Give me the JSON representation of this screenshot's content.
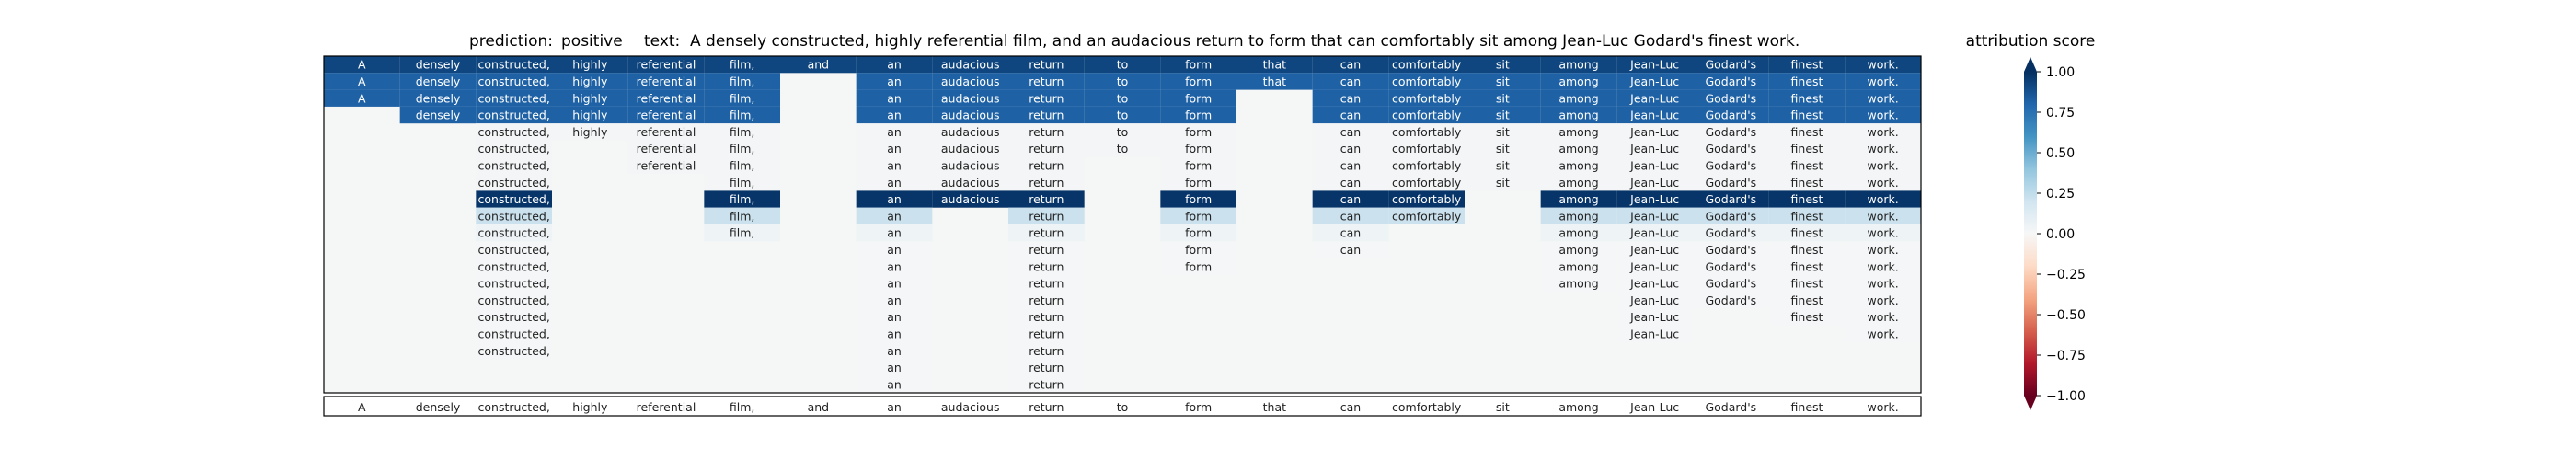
{
  "header": {
    "prediction_label": "prediction:",
    "prediction_value": "positive",
    "text_label": "text:",
    "text_value": "A densely constructed, highly referential film, and an audacious return to form that can comfortably sit among Jean-Luc Godard's finest work."
  },
  "colorbar": {
    "title": "attribution score",
    "ticks": [
      "1.00",
      "0.75",
      "0.50",
      "0.25",
      "0.00",
      "−0.25",
      "−0.50",
      "−0.75",
      "−1.00"
    ],
    "tick_values": [
      1.0,
      0.75,
      0.5,
      0.25,
      0.0,
      -0.25,
      -0.5,
      -0.75,
      -1.0
    ],
    "range": [
      -1.0,
      1.0
    ],
    "colormap": "RdBu"
  },
  "chart_data": {
    "type": "heatmap",
    "colormap": "RdBu",
    "range": [
      -1.0,
      1.0
    ],
    "tokens": [
      "A",
      "densely",
      "constructed,",
      "highly",
      "referential",
      "film,",
      "and",
      "an",
      "audacious",
      "return",
      "to",
      "form",
      "that",
      "can",
      "comfortably",
      "sit",
      "among",
      "Jean-Luc",
      "Godard's",
      "finest",
      "work."
    ],
    "bottom_row": [
      "A",
      "densely",
      "constructed,",
      "highly",
      "referential",
      "film,",
      "and",
      "an",
      "audacious",
      "return",
      "to",
      "form",
      "that",
      "can",
      "comfortably",
      "sit",
      "among",
      "Jean-Luc",
      "Godard's",
      "finest",
      "work."
    ],
    "rows": [
      {
        "shown": [
          1,
          1,
          1,
          1,
          1,
          1,
          1,
          1,
          1,
          1,
          1,
          1,
          1,
          1,
          1,
          1,
          1,
          1,
          1,
          1,
          1
        ],
        "scores": [
          0.92,
          0.92,
          0.92,
          0.92,
          0.92,
          0.92,
          0.92,
          0.92,
          0.92,
          0.92,
          0.92,
          0.92,
          0.92,
          0.92,
          0.92,
          0.92,
          0.92,
          0.92,
          0.92,
          0.92,
          0.92
        ]
      },
      {
        "shown": [
          1,
          1,
          1,
          1,
          1,
          1,
          0,
          1,
          1,
          1,
          1,
          1,
          1,
          1,
          1,
          1,
          1,
          1,
          1,
          1,
          1
        ],
        "scores": [
          0.82,
          0.82,
          0.82,
          0.82,
          0.82,
          0.82,
          0,
          0.82,
          0.82,
          0.82,
          0.82,
          0.82,
          0.82,
          0.82,
          0.82,
          0.82,
          0.82,
          0.82,
          0.82,
          0.82,
          0.82
        ]
      },
      {
        "shown": [
          1,
          1,
          1,
          1,
          1,
          1,
          0,
          1,
          1,
          1,
          1,
          1,
          0,
          1,
          1,
          1,
          1,
          1,
          1,
          1,
          1
        ],
        "scores": [
          0.82,
          0.82,
          0.82,
          0.82,
          0.82,
          0.82,
          0,
          0.82,
          0.82,
          0.82,
          0.82,
          0.82,
          0,
          0.82,
          0.82,
          0.82,
          0.82,
          0.82,
          0.82,
          0.82,
          0.82
        ]
      },
      {
        "shown": [
          0,
          1,
          1,
          1,
          1,
          1,
          0,
          1,
          1,
          1,
          1,
          1,
          0,
          1,
          1,
          1,
          1,
          1,
          1,
          1,
          1
        ],
        "scores": [
          0,
          0.82,
          0.82,
          0.82,
          0.82,
          0.82,
          0,
          0.82,
          0.82,
          0.82,
          0.82,
          0.82,
          0,
          0.82,
          0.82,
          0.82,
          0.82,
          0.82,
          0.82,
          0.82,
          0.82
        ]
      },
      {
        "shown": [
          0,
          0,
          1,
          1,
          1,
          1,
          0,
          1,
          1,
          1,
          1,
          1,
          0,
          1,
          1,
          1,
          1,
          1,
          1,
          1,
          1
        ],
        "scores": [
          0,
          0,
          0.02,
          0.02,
          0.02,
          0.02,
          0,
          0.02,
          0.02,
          0.02,
          0.02,
          0.02,
          0,
          0.02,
          0.02,
          0.02,
          0.02,
          0.02,
          0.02,
          0.02,
          0.02
        ]
      },
      {
        "shown": [
          0,
          0,
          1,
          0,
          1,
          1,
          0,
          1,
          1,
          1,
          1,
          1,
          0,
          1,
          1,
          1,
          1,
          1,
          1,
          1,
          1
        ],
        "scores": [
          0,
          0,
          0.02,
          0,
          0.02,
          0.02,
          0,
          0.02,
          0.02,
          0.02,
          0.02,
          0.02,
          0,
          0.02,
          0.02,
          0.02,
          0.02,
          0.02,
          0.02,
          0.02,
          0.02
        ]
      },
      {
        "shown": [
          0,
          0,
          1,
          0,
          1,
          1,
          0,
          1,
          1,
          1,
          0,
          1,
          0,
          1,
          1,
          1,
          1,
          1,
          1,
          1,
          1
        ],
        "scores": [
          0,
          0,
          0.02,
          0,
          0.02,
          0.02,
          0,
          0.02,
          0.02,
          0.02,
          0,
          0.02,
          0,
          0.02,
          0.02,
          0.02,
          0.02,
          0.02,
          0.02,
          0.02,
          0.02
        ]
      },
      {
        "shown": [
          0,
          0,
          1,
          0,
          0,
          1,
          0,
          1,
          1,
          1,
          0,
          1,
          0,
          1,
          1,
          1,
          1,
          1,
          1,
          1,
          1
        ],
        "scores": [
          0,
          0,
          0.02,
          0,
          0,
          0.02,
          0,
          0.02,
          0.02,
          0.02,
          0,
          0.02,
          0,
          0.02,
          0.02,
          0.02,
          0.02,
          0.02,
          0.02,
          0.02,
          0.02
        ]
      },
      {
        "shown": [
          0,
          0,
          1,
          0,
          0,
          1,
          0,
          1,
          1,
          1,
          0,
          1,
          0,
          1,
          1,
          0,
          1,
          1,
          1,
          1,
          1
        ],
        "scores": [
          0,
          0,
          0.98,
          0,
          0,
          0.98,
          0,
          0.98,
          0.98,
          0.98,
          0,
          0.98,
          0,
          0.98,
          0.98,
          0,
          0.98,
          0.98,
          0.98,
          0.98,
          0.98
        ]
      },
      {
        "shown": [
          0,
          0,
          1,
          0,
          0,
          1,
          0,
          1,
          0,
          1,
          0,
          1,
          0,
          1,
          1,
          0,
          1,
          1,
          1,
          1,
          1
        ],
        "scores": [
          0,
          0,
          0.22,
          0,
          0,
          0.22,
          0,
          0.22,
          0,
          0.22,
          0,
          0.22,
          0,
          0.22,
          0.22,
          0,
          0.22,
          0.22,
          0.22,
          0.22,
          0.22
        ]
      },
      {
        "shown": [
          0,
          0,
          1,
          0,
          0,
          1,
          0,
          1,
          0,
          1,
          0,
          1,
          0,
          1,
          0,
          0,
          1,
          1,
          1,
          1,
          1
        ],
        "scores": [
          0,
          0,
          0.05,
          0,
          0,
          0.05,
          0,
          0.05,
          0,
          0.05,
          0,
          0.05,
          0,
          0.05,
          0,
          0,
          0.05,
          0.05,
          0.05,
          0.05,
          0.05
        ]
      },
      {
        "shown": [
          0,
          0,
          1,
          0,
          0,
          0,
          0,
          1,
          0,
          1,
          0,
          1,
          0,
          1,
          0,
          0,
          1,
          1,
          1,
          1,
          1
        ],
        "scores": [
          0,
          0,
          0.01,
          0,
          0,
          0,
          0,
          0.01,
          0,
          0.01,
          0,
          0.01,
          0,
          0.01,
          0,
          0,
          0.01,
          0.01,
          0.01,
          0.01,
          0.01
        ]
      },
      {
        "shown": [
          0,
          0,
          1,
          0,
          0,
          0,
          0,
          1,
          0,
          1,
          0,
          1,
          0,
          0,
          0,
          0,
          1,
          1,
          1,
          1,
          1
        ],
        "scores": [
          0,
          0,
          0.01,
          0,
          0,
          0,
          0,
          0.01,
          0,
          0.01,
          0,
          0.01,
          0,
          0,
          0,
          0,
          0.01,
          0.01,
          0.01,
          0.01,
          0.01
        ]
      },
      {
        "shown": [
          0,
          0,
          1,
          0,
          0,
          0,
          0,
          1,
          0,
          1,
          0,
          0,
          0,
          0,
          0,
          0,
          1,
          1,
          1,
          1,
          1
        ],
        "scores": [
          0,
          0,
          0.01,
          0,
          0,
          0,
          0,
          0.01,
          0,
          0.01,
          0,
          0,
          0,
          0,
          0,
          0,
          0.01,
          0.01,
          0.01,
          0.01,
          0.01
        ]
      },
      {
        "shown": [
          0,
          0,
          1,
          0,
          0,
          0,
          0,
          1,
          0,
          1,
          0,
          0,
          0,
          0,
          0,
          0,
          0,
          1,
          1,
          1,
          1
        ],
        "scores": [
          0,
          0,
          0.01,
          0,
          0,
          0,
          0,
          0.01,
          0,
          0.01,
          0,
          0,
          0,
          0,
          0,
          0,
          0,
          0.01,
          0.01,
          0.01,
          0.01
        ]
      },
      {
        "shown": [
          0,
          0,
          1,
          0,
          0,
          0,
          0,
          1,
          0,
          1,
          0,
          0,
          0,
          0,
          0,
          0,
          0,
          1,
          0,
          1,
          1
        ],
        "scores": [
          0,
          0,
          0.01,
          0,
          0,
          0,
          0,
          0.01,
          0,
          0.01,
          0,
          0,
          0,
          0,
          0,
          0,
          0,
          0.01,
          0,
          0.01,
          0.01
        ]
      },
      {
        "shown": [
          0,
          0,
          1,
          0,
          0,
          0,
          0,
          1,
          0,
          1,
          0,
          0,
          0,
          0,
          0,
          0,
          0,
          1,
          0,
          0,
          1
        ],
        "scores": [
          0,
          0,
          0.01,
          0,
          0,
          0,
          0,
          0.01,
          0,
          0.01,
          0,
          0,
          0,
          0,
          0,
          0,
          0,
          0.01,
          0,
          0,
          0.01
        ]
      },
      {
        "shown": [
          0,
          0,
          1,
          0,
          0,
          0,
          0,
          1,
          0,
          1,
          0,
          0,
          0,
          0,
          0,
          0,
          0,
          0,
          0,
          0,
          0
        ],
        "scores": [
          0,
          0,
          0.01,
          0,
          0,
          0,
          0,
          0.01,
          0,
          0.01,
          0,
          0,
          0,
          0,
          0,
          0,
          0,
          0,
          0,
          0,
          0
        ]
      },
      {
        "shown": [
          0,
          0,
          0,
          0,
          0,
          0,
          0,
          1,
          0,
          1,
          0,
          0,
          0,
          0,
          0,
          0,
          0,
          0,
          0,
          0,
          0
        ],
        "scores": [
          0,
          0,
          0,
          0,
          0,
          0,
          0,
          0.01,
          0,
          0.01,
          0,
          0,
          0,
          0,
          0,
          0,
          0,
          0,
          0,
          0,
          0
        ]
      },
      {
        "shown": [
          0,
          0,
          0,
          0,
          0,
          0,
          0,
          1,
          0,
          1,
          0,
          0,
          0,
          0,
          0,
          0,
          0,
          0,
          0,
          0,
          0
        ],
        "scores": [
          0,
          0,
          0,
          0,
          0,
          0,
          0,
          0.01,
          0,
          0.01,
          0,
          0,
          0,
          0,
          0,
          0,
          0,
          0,
          0,
          0,
          0
        ]
      }
    ]
  }
}
